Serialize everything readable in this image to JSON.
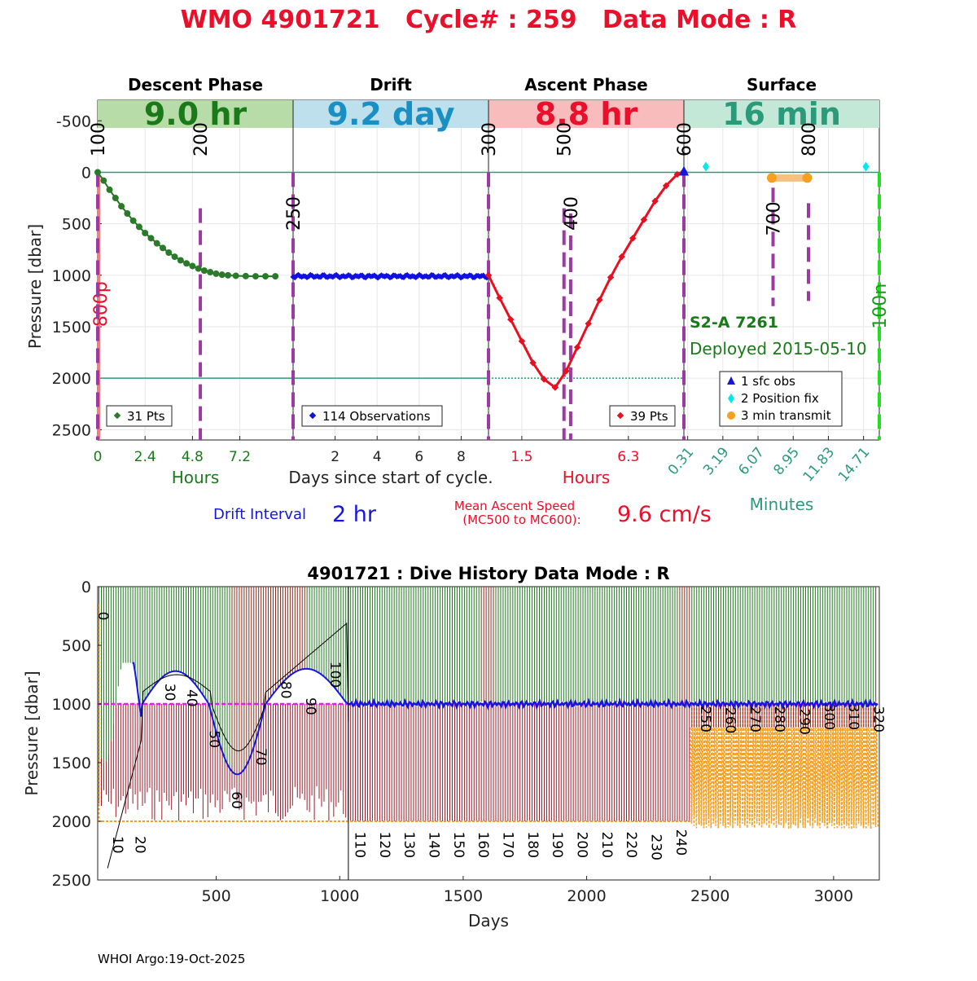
{
  "page_title": "WMO 4901721   Cycle# : 259   Data Mode : R",
  "chart_data": [
    {
      "type": "line",
      "panel": "cycle-profile",
      "ylabel": "Pressure [dbar]",
      "ylim": [
        -700,
        2600
      ],
      "y_reversed": true,
      "y_ticks": [
        "-500",
        "0",
        "500",
        "1000",
        "1500",
        "2000",
        "2500"
      ],
      "y_tick_values": [
        -500,
        0,
        500,
        1000,
        1500,
        2000,
        2500
      ],
      "phases": [
        {
          "name": "Descent Phase",
          "duration": "9.0 hr",
          "color": "#1a7a1a",
          "band": "#b8dca8",
          "xlim": [
            0,
            9.9
          ],
          "x_ticks": [
            0,
            2.4,
            4.8,
            7.2
          ],
          "x_tick_labels": [
            "0",
            "2.4",
            "4.8",
            "7.2"
          ],
          "tick_color": "#1a7a1a",
          "unit_label": "Hours",
          "legend": "31 Pts",
          "marker_color": "#2a7a2a"
        },
        {
          "name": "Drift",
          "duration": "9.2 day",
          "color": "#1a8fc4",
          "band": "#bde0ec",
          "xlim": [
            0,
            9.3
          ],
          "x_ticks": [
            2,
            4,
            6,
            8
          ],
          "x_tick_labels": [
            "2",
            "4",
            "6",
            "8"
          ],
          "tick_color": "#222222",
          "unit_label": "Days since start of cycle.",
          "legend": "114 Observations",
          "marker_color": "#1010e0"
        },
        {
          "name": "Ascent Phase",
          "duration": "8.8 hr",
          "color": "#e8102a",
          "band": "#f8bcbc",
          "xlim": [
            0,
            8.8
          ],
          "x_ticks": [
            1.5,
            6.3
          ],
          "x_tick_labels": [
            "1.5",
            "6.3"
          ],
          "tick_color": "#e8102a",
          "unit_label": "Hours",
          "legend": "39 Pts",
          "marker_color": "#e81020"
        },
        {
          "name": "Surface",
          "duration": "16 min",
          "color": "#2a9a7a",
          "band": "#c4e8d8",
          "xlim": [
            0,
            16
          ],
          "x_ticks": [
            0.31,
            3.19,
            6.07,
            8.95,
            11.83,
            14.71
          ],
          "x_tick_labels": [
            "0.31",
            "3.19",
            "6.07",
            "8.95",
            "11.83",
            "14.71"
          ],
          "tick_color": "#2a9a7a",
          "unit_label": "Minutes"
        }
      ],
      "descent": {
        "x": [
          0,
          0.3,
          0.6,
          0.9,
          1.2,
          1.5,
          1.8,
          2.1,
          2.4,
          2.7,
          3.0,
          3.3,
          3.6,
          3.9,
          4.2,
          4.5,
          4.8,
          5.1,
          5.4,
          5.7,
          6.0,
          6.3,
          6.6,
          7.0,
          7.5,
          8.0,
          8.5,
          9.0
        ],
        "y": [
          0,
          80,
          170,
          250,
          330,
          400,
          470,
          530,
          590,
          640,
          690,
          735,
          780,
          820,
          855,
          885,
          910,
          935,
          955,
          970,
          985,
          995,
          1000,
          1005,
          1008,
          1010,
          1010,
          1010
        ]
      },
      "drift": {
        "depth": 1010,
        "noise": 15,
        "points": 114
      },
      "ascent": {
        "x": [
          0,
          0.5,
          1.0,
          1.5,
          2.0,
          2.5,
          3.0,
          3.5,
          4.0,
          4.5,
          5.0,
          5.5,
          6.0,
          6.5,
          7.0,
          7.5,
          8.0,
          8.5,
          8.8
        ],
        "y": [
          1000,
          1220,
          1430,
          1640,
          1850,
          2010,
          2090,
          1930,
          1700,
          1470,
          1240,
          1020,
          820,
          640,
          460,
          280,
          130,
          20,
          -10
        ]
      },
      "hlines": [
        0,
        2000
      ],
      "markers": [
        {
          "label": "100",
          "phase": 0,
          "x": 0,
          "color": "#9b3aa0",
          "dashed": true,
          "y_from": 0,
          "y_to": 2600,
          "label_y": -320
        },
        {
          "label": "200",
          "phase": 0,
          "x": 5.2,
          "color": "#9b3aa0",
          "dashed": true,
          "y_from": 350,
          "y_to": 2600,
          "label_y": -320
        },
        {
          "label": "250",
          "phase": 1,
          "x": 0,
          "color": "#9b3aa0",
          "dashed": true,
          "y_from": 0,
          "y_to": 2600,
          "label_y": 400
        },
        {
          "label": "300",
          "phase": 2,
          "x": 0,
          "color": "#9b3aa0",
          "dashed": true,
          "y_from": 0,
          "y_to": 2600,
          "label_y": -320
        },
        {
          "label": "500",
          "phase": 2,
          "x": 3.4,
          "color": "#9b3aa0",
          "dashed": true,
          "y_from": 350,
          "y_to": 2600,
          "label_y": -320
        },
        {
          "label": "400",
          "phase": 2,
          "x": 3.7,
          "color": "#9b3aa0",
          "dashed": true,
          "y_from": 400,
          "y_to": 2600,
          "label_y": 400
        },
        {
          "label": "600",
          "phase": 2,
          "x": 8.8,
          "color": "#9b3aa0",
          "dashed": true,
          "y_from": 0,
          "y_to": 2600,
          "label_y": -320
        },
        {
          "label": "700",
          "phase": 3,
          "x": 7.3,
          "color": "#9b3aa0",
          "dashed": true,
          "y_from": 150,
          "y_to": 1300,
          "label_y": 450
        },
        {
          "label": "800",
          "phase": 3,
          "x": 10.2,
          "color": "#9b3aa0",
          "dashed": true,
          "y_from": 300,
          "y_to": 1250,
          "label_y": -320
        },
        {
          "label": "100n",
          "phase": 3,
          "x": 16,
          "color": "#22dd22",
          "dashed": true,
          "y_from": 0,
          "y_to": 2600,
          "label_y": 1300
        }
      ],
      "depth_label": {
        "text": "800p",
        "color": "#e8102a"
      },
      "surface_points": {
        "sfc_obs": [
          {
            "x": 0,
            "y": 0
          }
        ],
        "position_fix": [
          {
            "x": 1.8,
            "y": -55
          },
          {
            "x": 14.9,
            "y": -55
          }
        ],
        "transmit": {
          "x_from": 7.2,
          "x_to": 10.1,
          "y": 55
        }
      },
      "float_info": {
        "model": "S2-A 7261",
        "deployed": "Deployed 2015-05-10"
      },
      "surface_legend": [
        {
          "label": "1 sfc obs",
          "symbol": "triangle",
          "color": "#1515e0"
        },
        {
          "label": "2 Position fix",
          "symbol": "diamond",
          "color": "#00e8ee"
        },
        {
          "label": "3 min transmit",
          "symbol": "circle",
          "color": "#f5a020"
        }
      ],
      "drift_interval": {
        "label": "Drift Interval",
        "value": "2 hr"
      },
      "ascent_speed": {
        "label_line1": "Mean Ascent Speed",
        "label_line2": "(MC500 to MC600):",
        "value": "9.6 cm/s"
      }
    },
    {
      "type": "line",
      "panel": "dive-history",
      "title": "4901721 : Dive History      Data Mode : R",
      "xlabel": "Days",
      "ylabel": "Pressure [dbar]",
      "xlim": [
        20,
        3185
      ],
      "ylim": [
        0,
        2500
      ],
      "y_reversed": true,
      "x_ticks": [
        500,
        1000,
        1500,
        2000,
        2500,
        3000
      ],
      "x_tick_labels": [
        "500",
        "1000",
        "1500",
        "2000",
        "2500",
        "3000"
      ],
      "y_ticks": [
        0,
        500,
        1000,
        1500,
        2000,
        2500
      ],
      "y_tick_labels": [
        "0",
        "500",
        "1000",
        "1500",
        "2000",
        "2500"
      ],
      "park_pressure": 1000,
      "cycle_labels": [
        {
          "label": "0",
          "day": 20,
          "p": 250
        },
        {
          "label": "10",
          "day": 80,
          "p": 2200
        },
        {
          "label": "20",
          "day": 170,
          "p": 2200
        },
        {
          "label": "30",
          "day": 290,
          "p": 900
        },
        {
          "label": "40",
          "day": 380,
          "p": 950
        },
        {
          "label": "50",
          "day": 470,
          "p": 1300
        },
        {
          "label": "60",
          "day": 560,
          "p": 1820
        },
        {
          "label": "70",
          "day": 660,
          "p": 1450
        },
        {
          "label": "80",
          "day": 760,
          "p": 880
        },
        {
          "label": "90",
          "day": 860,
          "p": 1020
        },
        {
          "label": "100",
          "day": 960,
          "p": 750
        },
        {
          "label": "110",
          "day": 1060,
          "p": 2200
        },
        {
          "label": "120",
          "day": 1160,
          "p": 2200
        },
        {
          "label": "130",
          "day": 1260,
          "p": 2200
        },
        {
          "label": "140",
          "day": 1360,
          "p": 2200
        },
        {
          "label": "150",
          "day": 1460,
          "p": 2200
        },
        {
          "label": "160",
          "day": 1560,
          "p": 2200
        },
        {
          "label": "170",
          "day": 1660,
          "p": 2200
        },
        {
          "label": "180",
          "day": 1760,
          "p": 2200
        },
        {
          "label": "190",
          "day": 1860,
          "p": 2200
        },
        {
          "label": "200",
          "day": 1960,
          "p": 2200
        },
        {
          "label": "210",
          "day": 2060,
          "p": 2200
        },
        {
          "label": "220",
          "day": 2160,
          "p": 2200
        },
        {
          "label": "230",
          "day": 2260,
          "p": 2220
        },
        {
          "label": "240",
          "day": 2360,
          "p": 2180
        },
        {
          "label": "250",
          "day": 2460,
          "p": 1130
        },
        {
          "label": "260",
          "day": 2560,
          "p": 1140
        },
        {
          "label": "270",
          "day": 2660,
          "p": 1130
        },
        {
          "label": "280",
          "day": 2760,
          "p": 1130
        },
        {
          "label": "290",
          "day": 2860,
          "p": 1150
        },
        {
          "label": "300",
          "day": 2960,
          "p": 1110
        },
        {
          "label": "310",
          "day": 3060,
          "p": 1110
        },
        {
          "label": "320",
          "day": 3160,
          "p": 1130
        }
      ],
      "colors": {
        "surface_bars": "#1f7a1f",
        "descent_bars": "#9a1a2a",
        "profile_depth": "#f5a020",
        "drift_line": "#1515e0",
        "park_line": "#e81ae8",
        "trajectory": "#000000"
      }
    }
  ],
  "footer": "WHOI Argo:19-Oct-2025"
}
